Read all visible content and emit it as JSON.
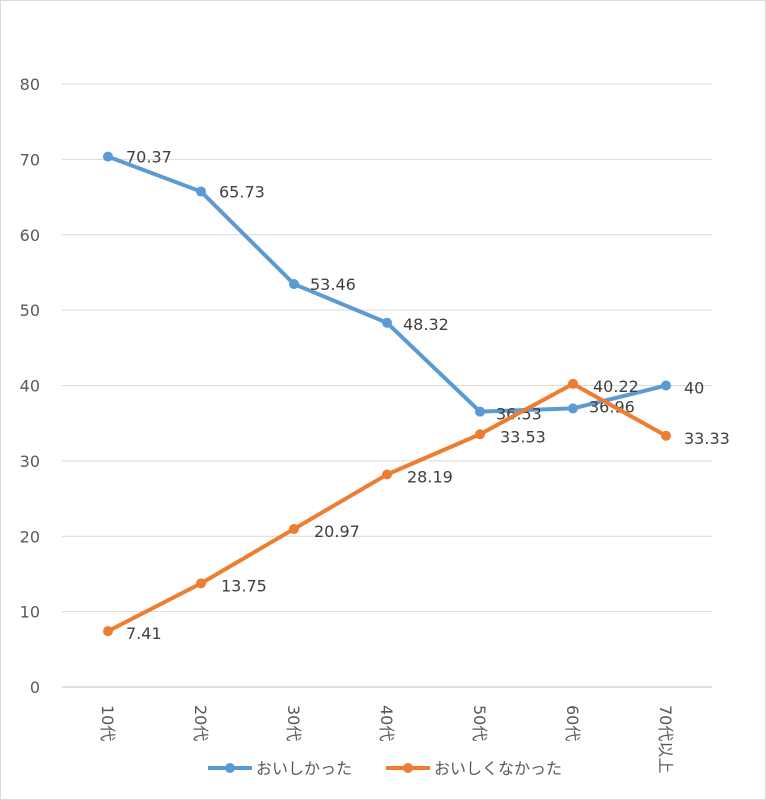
{
  "chart_data": {
    "type": "line",
    "categories": [
      "10代",
      "20代",
      "30代",
      "40代",
      "50代",
      "60代",
      "70代以上"
    ],
    "series": [
      {
        "name": "おいしかった",
        "color": "#5B9BD5",
        "values": [
          70.37,
          65.73,
          53.46,
          48.32,
          36.53,
          36.96,
          40
        ],
        "labels": [
          "70.37",
          "65.73",
          "53.46",
          "48.32",
          "36.53",
          "36.96",
          "40"
        ]
      },
      {
        "name": "おいしくなかった",
        "color": "#ED7D31",
        "values": [
          7.41,
          13.75,
          20.97,
          28.19,
          33.53,
          40.22,
          33.33
        ],
        "labels": [
          "7.41",
          "13.75",
          "20.97",
          "28.19",
          "33.53",
          "40.22",
          "33.33"
        ]
      }
    ],
    "ylim": [
      0,
      80
    ],
    "yticks": [
      "0",
      "10",
      "20",
      "30",
      "40",
      "50",
      "60",
      "70",
      "80"
    ],
    "grid": true,
    "legend_position": "bottom",
    "title": "",
    "xlabel": "",
    "ylabel": ""
  }
}
